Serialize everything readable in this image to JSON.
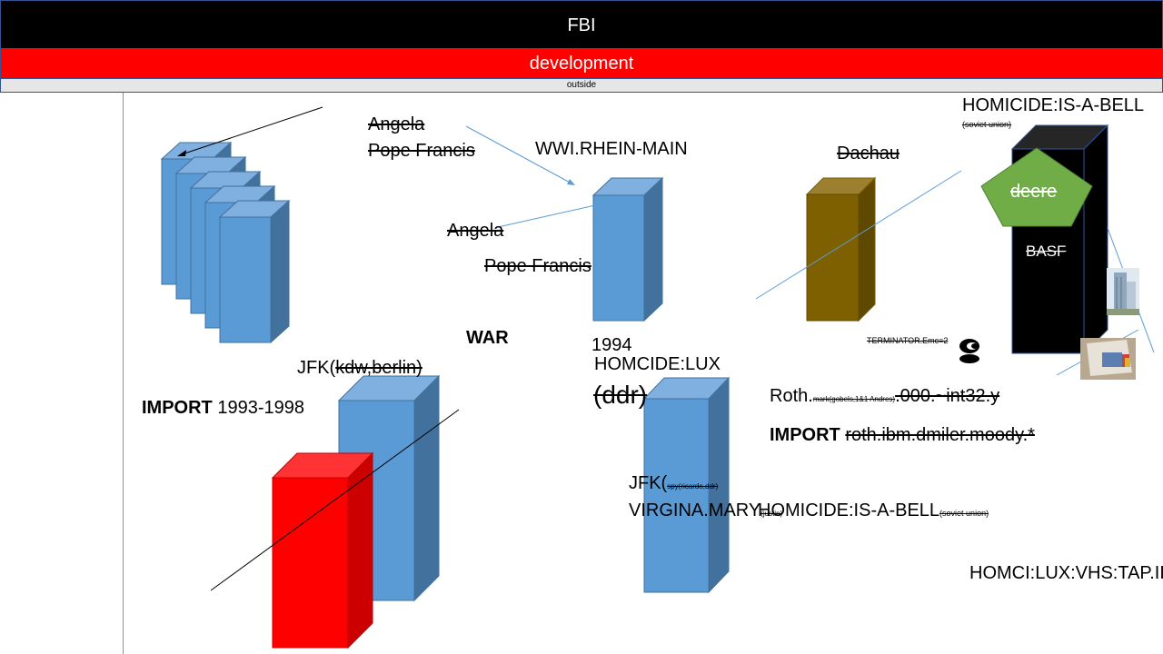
{
  "header": {
    "title": "FBI",
    "subtitle": "development",
    "note": "outside"
  },
  "labels": {
    "angela_top": "Angela",
    "pope_top": "Pope Francis",
    "wwi": "WWI.RHEIN-MAIN",
    "angela_mid": "Angela",
    "pope_mid": "Pope Francis",
    "dachau": "Dachau",
    "homicide_bell": "HOMICIDE:IS-A-BELL",
    "soviet_union_1": "(soviet union)",
    "deere": "deere",
    "basf": "BASF",
    "terminator": "TERMINATOR.Emc=2",
    "war": "WAR",
    "year_1994": "1994",
    "homcide_lux": "HOMCIDE:LUX",
    "ddr": "(ddr)",
    "jfk_prefix": "JFK(",
    "jfk_struck": "kdw,berlin)",
    "import_label": "IMPORT",
    "import_years": "1993-1998",
    "roth_prefix": "Roth.",
    "roth_small": "mark(gobels,1&1 Andres)",
    "roth_struck": ".000.~int32.y",
    "import2_label": "IMPORT",
    "import2_struck": "roth.ibm.dmiler.moody.*",
    "jfk2_prefix": "JFK(",
    "jfk2_small": "spy(ricardo,ddr)",
    "virgina": "VIRGINA.MARY",
    "virgina_small": "(justin)",
    "homicide_bell2": "HOMICIDE:IS-A-BELL",
    "soviet_union_2": "(soviet union)",
    "homci_vhs": "HOMCI:LUX:VHS:TAP.II"
  },
  "colors": {
    "blue_front": "#5b9bd5",
    "blue_top": "#7fb0e0",
    "blue_side": "#41719c",
    "red_front": "#ff0000",
    "red_top": "#ff3333",
    "red_side": "#cc0000",
    "brown_front": "#7f6000",
    "brown_top": "#9c8030",
    "black": "#000000",
    "green_pentagon": "#70ad47"
  },
  "icons": [
    "copyright-icon",
    "building-photo",
    "book-photo"
  ]
}
